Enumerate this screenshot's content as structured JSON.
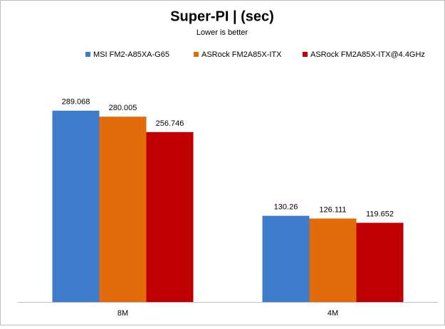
{
  "chart_data": {
    "type": "bar",
    "title": "Super-PI | (sec)",
    "subtitle": "Lower  is better",
    "categories": [
      "8M",
      "4M"
    ],
    "series": [
      {
        "name": "MSI FM2-A85XA-G65",
        "color": "#3f7ccc",
        "values": [
          289.068,
          130.26
        ]
      },
      {
        "name": "ASRock FM2A85X-ITX",
        "color": "#e36c0a",
        "values": [
          280.005,
          126.111
        ]
      },
      {
        "name": "ASRock FM2A85X-ITX@4.4GHz",
        "color": "#c00000",
        "values": [
          256.746,
          119.652
        ]
      }
    ],
    "ylim": [
      0,
      350
    ],
    "legend": "top"
  }
}
